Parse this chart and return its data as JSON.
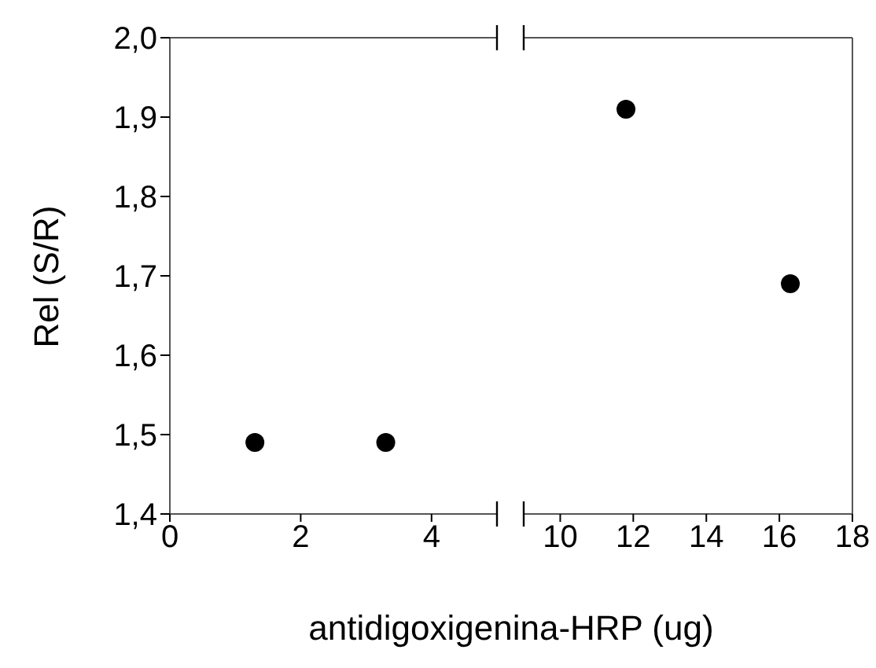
{
  "chart_data": [
    {
      "type": "scatter",
      "ylabel": "Rel (S/R)",
      "xlabel": "antidigoxigenina-HRP (ug)",
      "x": [
        1.3,
        3.3
      ],
      "values": [
        1.49,
        1.49
      ],
      "color": "#000000",
      "marker": "circle",
      "xlim": [
        0,
        5
      ],
      "xticks": [
        0,
        2,
        4
      ],
      "ylim": [
        1.4,
        2.0
      ],
      "yticks": [
        {
          "value": 1.4,
          "label": "1,4"
        },
        {
          "value": 1.5,
          "label": "1,5"
        },
        {
          "value": 1.6,
          "label": "1,6"
        },
        {
          "value": 1.7,
          "label": "1,7"
        },
        {
          "value": 1.8,
          "label": "1,8"
        },
        {
          "value": 1.9,
          "label": "1,9"
        },
        {
          "value": 2.0,
          "label": "2,0"
        }
      ],
      "grid": false,
      "legend": false
    },
    {
      "type": "scatter",
      "x": [
        11.8,
        16.3
      ],
      "values": [
        1.91,
        1.69
      ],
      "color": "#000000",
      "marker": "circle",
      "xlim": [
        9,
        18
      ],
      "xticks": [
        10,
        12,
        14,
        16,
        18
      ],
      "ylim": [
        1.4,
        2.0
      ],
      "tick_labels": "x",
      "grid": false,
      "legend": false
    }
  ]
}
